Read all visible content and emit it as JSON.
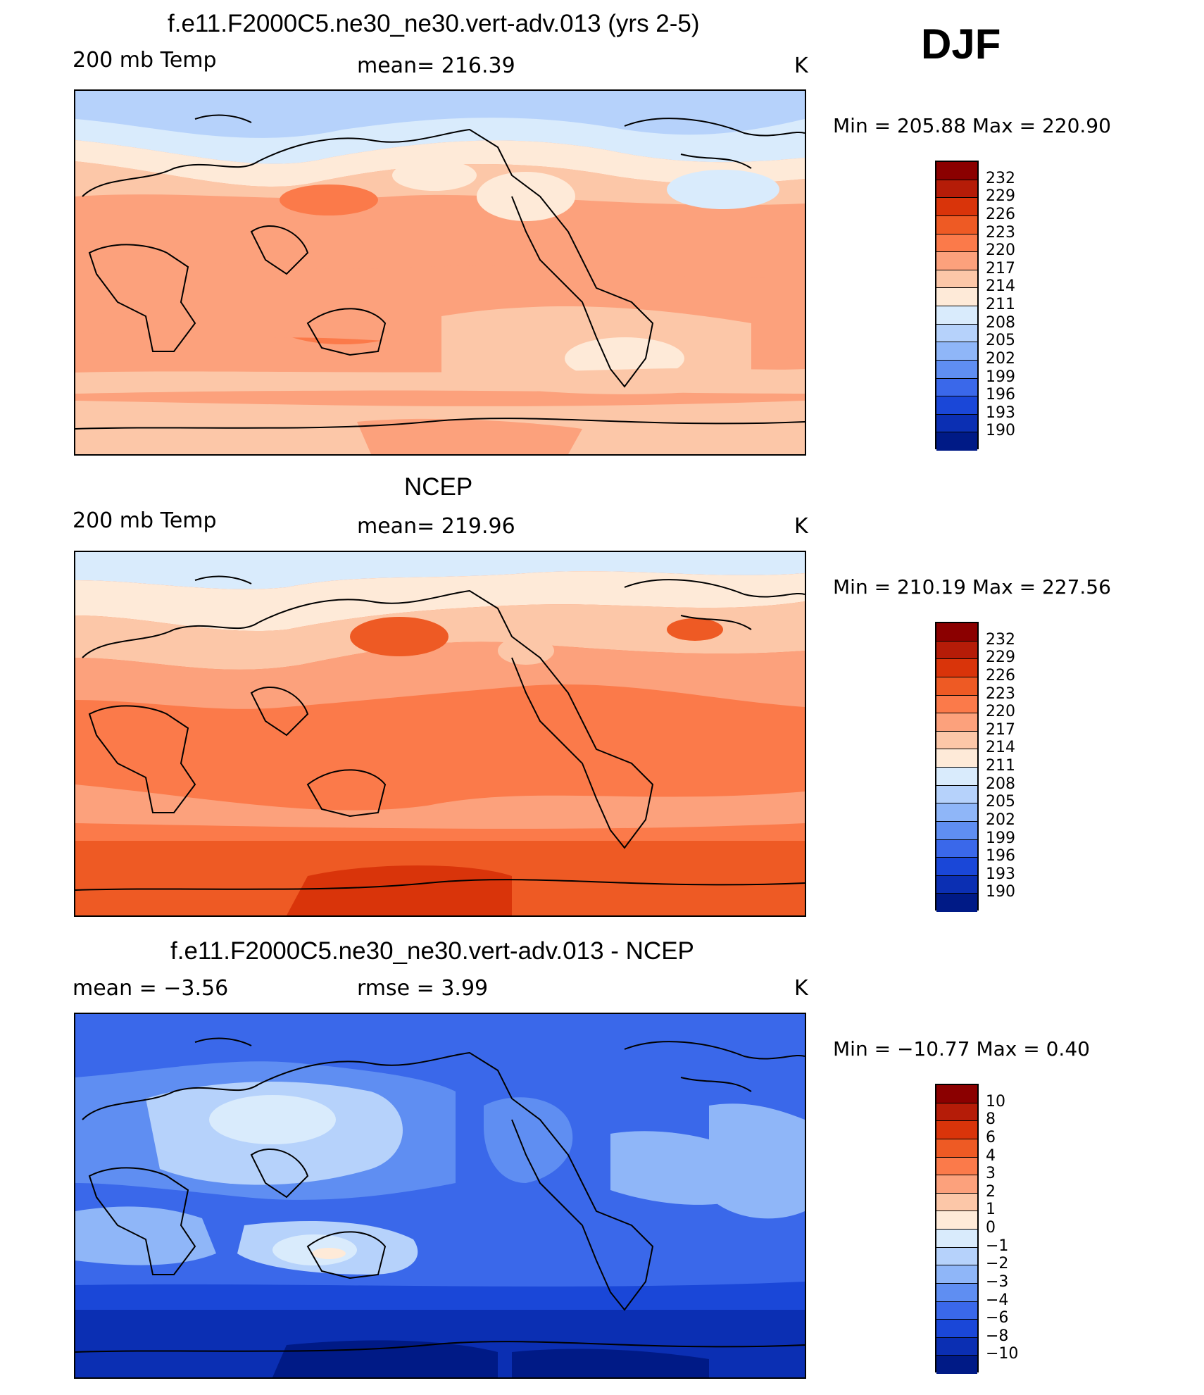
{
  "season": "DJF",
  "panels": [
    {
      "title": "f.e11.F2000C5.ne30_ne30.vert-adv.013 (yrs 2-5)",
      "left_label": "200 mb Temp",
      "center_label": "mean=  216.39",
      "units": "K",
      "minmax": "Min  =  205.88  Max  =  220.90",
      "colorbar_labels": [
        "232",
        "229",
        "226",
        "223",
        "220",
        "217",
        "214",
        "211",
        "208",
        "205",
        "202",
        "199",
        "196",
        "193",
        "190"
      ]
    },
    {
      "title": "NCEP",
      "left_label": "200 mb Temp",
      "center_label": "mean=  219.96",
      "units": "K",
      "minmax": "Min  =  210.19  Max  =  227.56",
      "colorbar_labels": [
        "232",
        "229",
        "226",
        "223",
        "220",
        "217",
        "214",
        "211",
        "208",
        "205",
        "202",
        "199",
        "196",
        "193",
        "190"
      ]
    },
    {
      "title": "f.e11.F2000C5.ne30_ne30.vert-adv.013 - NCEP",
      "left_label": "mean  =     −3.56",
      "center_label": "rmse  =      3.99",
      "units": "K",
      "minmax": "Min  =  −10.77  Max  =      0.40",
      "colorbar_labels": [
        "10",
        "8",
        "6",
        "4",
        "3",
        "2",
        "1",
        "0",
        "−1",
        "−2",
        "−3",
        "−4",
        "−6",
        "−8",
        "−10"
      ]
    }
  ],
  "colorbar_colors": [
    "#8b0000",
    "#b51c08",
    "#d9340a",
    "#ee5a24",
    "#fb7a4a",
    "#fca17c",
    "#fcc7a8",
    "#feead8",
    "#d9ebfc",
    "#b6d2fb",
    "#8fb6f8",
    "#5f8ef2",
    "#3a68ea",
    "#1a47d8",
    "#0b2fb3",
    "#001a86"
  ],
  "legend_label_colors": {
    "cb_map": "colorbar_colors"
  }
}
